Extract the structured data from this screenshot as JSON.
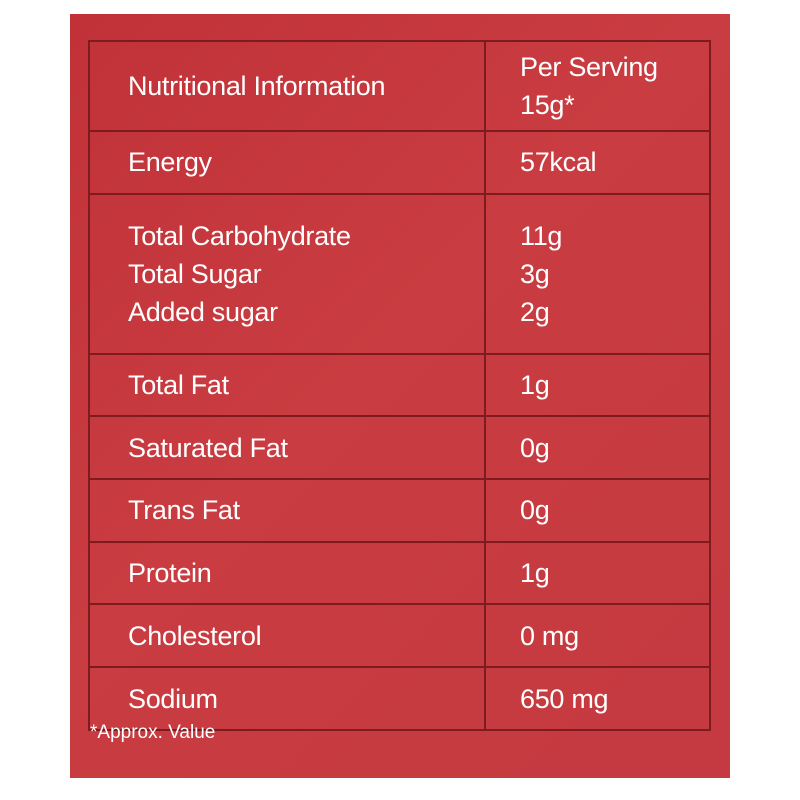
{
  "table": {
    "header": {
      "label": "Nutritional Information",
      "value_lines": [
        "Per Serving",
        "15g*"
      ]
    },
    "rows": [
      {
        "labels": [
          "Energy"
        ],
        "values": [
          "57kcal"
        ]
      },
      {
        "labels": [
          "Total Carbohydrate",
          "Total Sugar",
          "Added sugar"
        ],
        "values": [
          "11g",
          "3g",
          "2g"
        ]
      },
      {
        "labels": [
          "Total Fat"
        ],
        "values": [
          "1g"
        ]
      },
      {
        "labels": [
          "Saturated Fat"
        ],
        "values": [
          "0g"
        ]
      },
      {
        "labels": [
          "Trans Fat"
        ],
        "values": [
          "0g"
        ]
      },
      {
        "labels": [
          "Protein"
        ],
        "values": [
          "1g"
        ]
      },
      {
        "labels": [
          "Cholesterol"
        ],
        "values": [
          "0 mg"
        ]
      },
      {
        "labels": [
          "Sodium"
        ],
        "values": [
          "650 mg"
        ]
      }
    ]
  },
  "footnote": "*Approx. Value",
  "colors": {
    "background": "#c43a40",
    "border": "#7e1b20",
    "text": "#ffffff"
  }
}
